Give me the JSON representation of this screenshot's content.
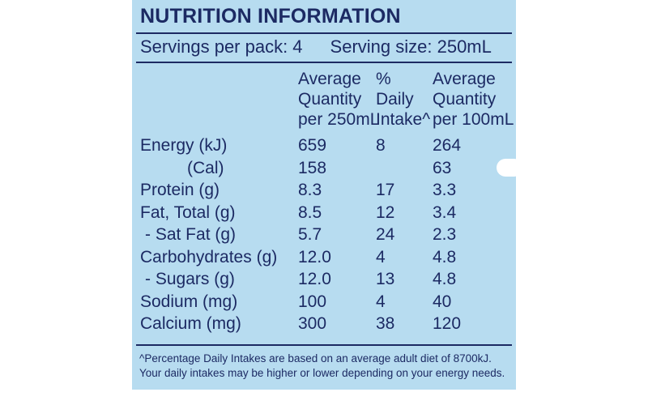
{
  "title": "NUTRITION INFORMATION",
  "servings": {
    "per_pack": "Servings per pack: 4",
    "size": "Serving size: 250mL"
  },
  "columns": {
    "per_serving": [
      "Average",
      "Quantity",
      "per 250mL"
    ],
    "daily_intake": [
      "%",
      "Daily",
      "Intake^"
    ],
    "per_100ml": [
      "Average",
      "Quantity",
      "per 100mL"
    ]
  },
  "rows": [
    {
      "label": "Energy (kJ)",
      "per_serving": "659",
      "daily_intake": "8",
      "per_100ml": "264"
    },
    {
      "label": "(Cal)",
      "per_serving": "158",
      "daily_intake": "",
      "per_100ml": "63"
    },
    {
      "label": "Protein (g)",
      "per_serving": "8.3",
      "daily_intake": "17",
      "per_100ml": "3.3"
    },
    {
      "label": "Fat, Total (g)",
      "per_serving": "8.5",
      "daily_intake": "12",
      "per_100ml": "3.4"
    },
    {
      "label": "- Sat Fat (g)",
      "per_serving": "5.7",
      "daily_intake": "24",
      "per_100ml": "2.3"
    },
    {
      "label": "Carbohydrates (g)",
      "per_serving": "12.0",
      "daily_intake": "4",
      "per_100ml": "4.8"
    },
    {
      "label": "- Sugars (g)",
      "per_serving": "12.0",
      "daily_intake": "13",
      "per_100ml": "4.8"
    },
    {
      "label": "Sodium (mg)",
      "per_serving": "100",
      "daily_intake": "4",
      "per_100ml": "40"
    },
    {
      "label": "Calcium (mg)",
      "per_serving": "300",
      "daily_intake": "38",
      "per_100ml": "120"
    }
  ],
  "footnote": [
    "^Percentage Daily Intakes are based on an average adult diet of 8700kJ.",
    "Your daily intakes may be higher or lower depending on your energy needs."
  ],
  "colors": {
    "panel_background": "#b7dcf0",
    "ink": "#1c2a63"
  }
}
